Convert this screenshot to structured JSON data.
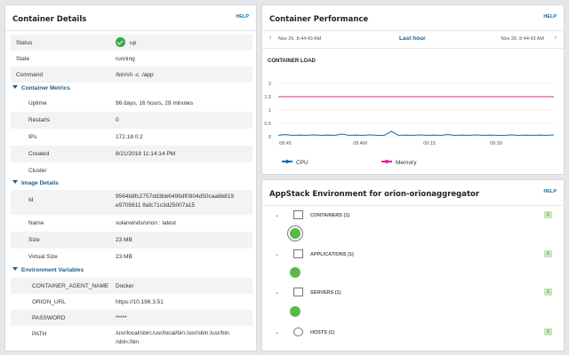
{
  "container_details": {
    "title": "Container Details",
    "help": "HELP",
    "status_label": "Status",
    "status_value": "up",
    "state_label": "State",
    "state_value": "running",
    "command_label": "Command",
    "command_value": "/bin/sh -c ./app",
    "metrics": {
      "title": "Container Metrics",
      "uptime_label": "Uptime",
      "uptime_value": "96 days, 16 hours, 29 minutes",
      "restarts_label": "Restarts",
      "restarts_value": "0",
      "ips_label": "IPs",
      "ips_value": "172.18.0.2",
      "created_label": "Created",
      "created_value": "8/21/2018 11:14:14 PM",
      "cluster_label": "Cluster",
      "cluster_value": ""
    },
    "image": {
      "title": "Image Details",
      "id_label": "Id",
      "id_value_1": "9564b8fc2757dd3bb6499df0804d50caa6b819",
      "id_value_2": "e9705611 8afc71c3d25007a15",
      "name_label": "Name",
      "name_value": "solarwinds/orion : latest",
      "size_label": "Size",
      "size_value": "23 MB",
      "vsize_label": "Virtual Size",
      "vsize_value": "23 MB"
    },
    "env": {
      "title": "Environment Variables",
      "agent_label": "CONTAINER_AGENT_NAME",
      "agent_value": "Docker",
      "orion_label": "ORION_URL",
      "orion_value": "https://10.196.3.51",
      "pw_label": "PASSWORD",
      "pw_value": "*****",
      "path_label": "PATH",
      "path_value_1": "/usr/local/sbin:/usr/local/bin:/usr/sbin:/usr/bin:",
      "path_value_2": "/sbin:/bin"
    }
  },
  "performance": {
    "title": "Container Performance",
    "help": "HELP",
    "range_start": "Nov 26, 8:44:43 AM",
    "range_label": "Last hour",
    "range_end": "Nov 26, 8:44:43 AM",
    "chart_title": "CONTAINER LOAD",
    "colors": {
      "cpu": "#1d6fb4",
      "memory": "#e0208c"
    }
  },
  "chart_data": {
    "type": "line",
    "title": "CONTAINER LOAD",
    "x_ticks": [
      "08:45",
      "09 AM",
      "09:15",
      "09:30"
    ],
    "y_ticks": [
      0,
      0.5,
      1,
      1.5,
      2
    ],
    "ylim": [
      0,
      2
    ],
    "series": [
      {
        "name": "CPU",
        "values": [
          0.05,
          0.08,
          0.05,
          0.06,
          0.05,
          0.07,
          0.05,
          0.06,
          0.05,
          0.1,
          0.05,
          0.06,
          0.05,
          0.07,
          0.05,
          0.05,
          0.2,
          0.05,
          0.06,
          0.05,
          0.07,
          0.05,
          0.06,
          0.05,
          0.08,
          0.05,
          0.06,
          0.05,
          0.07,
          0.05,
          0.06,
          0.05,
          0.05,
          0.07,
          0.05,
          0.06,
          0.05,
          0.06,
          0.05,
          0.07
        ]
      },
      {
        "name": "Memory",
        "values": [
          1.5,
          1.5,
          1.5,
          1.5,
          1.5,
          1.5,
          1.5,
          1.5,
          1.5,
          1.5,
          1.5,
          1.5,
          1.5,
          1.5,
          1.5,
          1.5,
          1.5,
          1.5,
          1.5,
          1.5,
          1.5,
          1.5,
          1.5,
          1.5,
          1.5,
          1.5,
          1.5,
          1.5,
          1.5,
          1.5,
          1.5,
          1.5,
          1.5,
          1.5,
          1.5,
          1.5,
          1.5,
          1.5,
          1.5,
          1.5
        ]
      }
    ]
  },
  "appstack": {
    "title": "AppStack Environment for orion-orionaggregator",
    "help": "HELP",
    "rows": [
      {
        "label": "CONTAINERS (1)",
        "count": "1"
      },
      {
        "label": "APPLICATIONS (1)",
        "count": "1"
      },
      {
        "label": "SERVERS (1)",
        "count": "1"
      },
      {
        "label": "HOSTS (1)",
        "count": "1"
      }
    ]
  }
}
